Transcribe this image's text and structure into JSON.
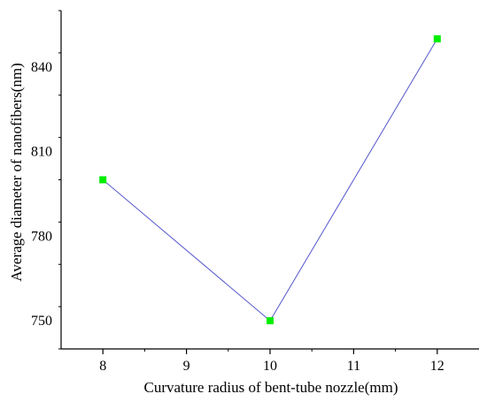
{
  "chart_data": {
    "type": "line",
    "title": "",
    "xlabel": "Curvature radius of bent-tube nozzle(mm)",
    "ylabel": "Average diameter of nanofibers(nm)",
    "xlim": [
      7.5,
      12.5
    ],
    "ylim": [
      740,
      860
    ],
    "x_ticks": [
      8,
      9,
      10,
      11,
      12
    ],
    "y_ticks": [
      750,
      780,
      810,
      840
    ],
    "series": [
      {
        "x": [
          8,
          10,
          12
        ],
        "y": [
          800,
          750,
          850
        ],
        "line_color": "#5555cc",
        "marker": "square",
        "marker_color": "#00ee00"
      }
    ],
    "grid": false,
    "legend": "none"
  }
}
